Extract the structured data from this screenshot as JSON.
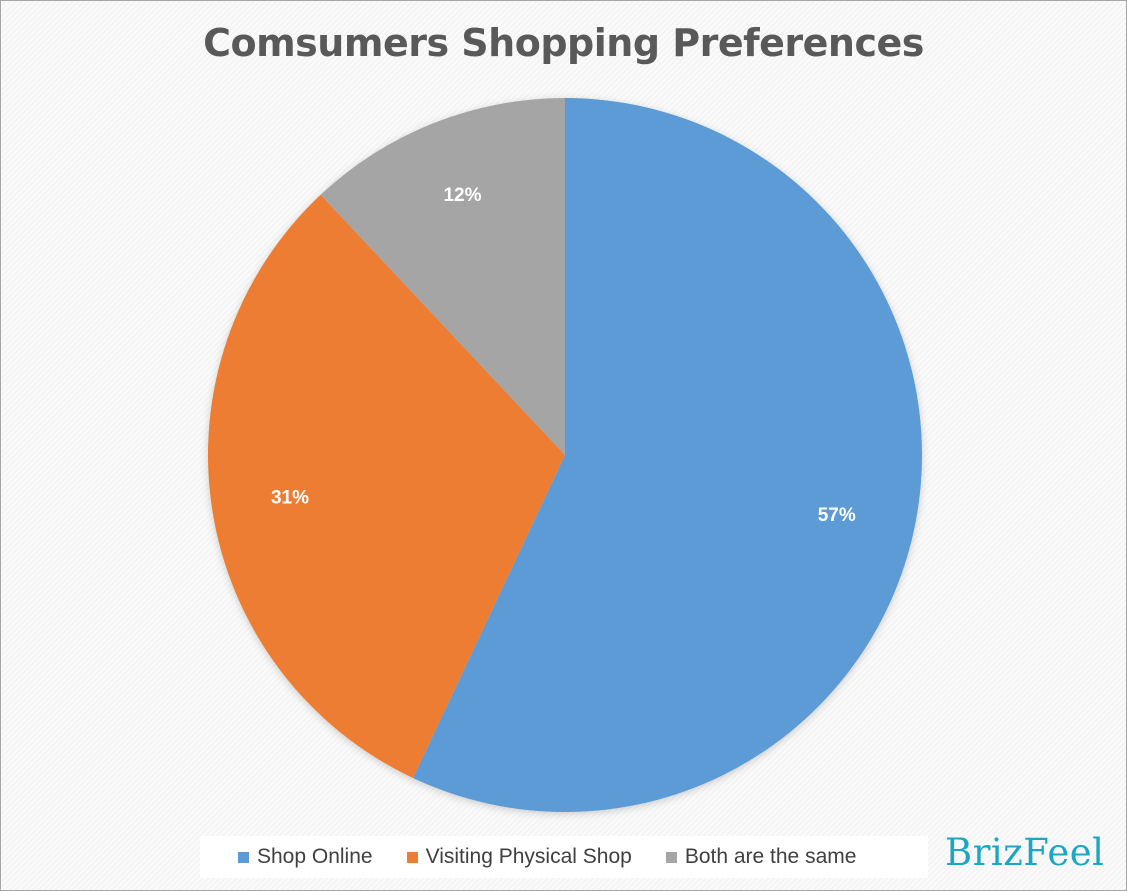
{
  "chart_data": {
    "type": "pie",
    "title": "Comsumers Shopping Preferences",
    "categories": [
      "Shop Online",
      "Visiting Physical Shop",
      "Both are the same"
    ],
    "values": [
      57,
      31,
      12
    ],
    "labels": [
      "57%",
      "31%",
      "12%"
    ],
    "colors": [
      "#5b9bd5",
      "#ed7d31",
      "#a5a5a5"
    ],
    "legend_position": "bottom",
    "start_angle_deg": 0,
    "direction": "clockwise"
  },
  "brand": {
    "name": "BrizFeel",
    "color": "#1ba7c4"
  }
}
